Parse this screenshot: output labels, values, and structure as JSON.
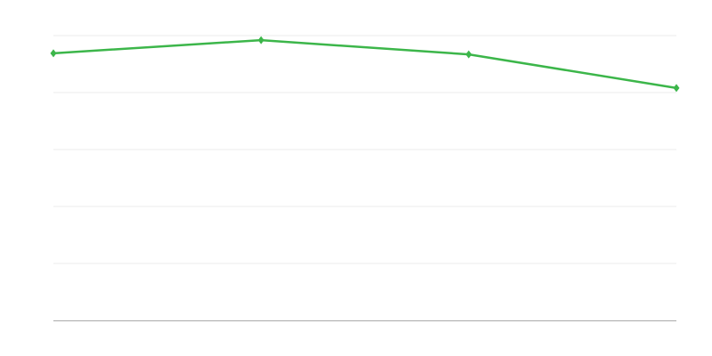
{
  "chart_data": {
    "type": "line",
    "title": "",
    "xlabel": "",
    "ylabel": "",
    "x": [
      0,
      1,
      2,
      3
    ],
    "ylim": [
      0,
      5
    ],
    "grid": true,
    "gridline_count": 5,
    "series": [
      {
        "values": [
          4.69,
          4.92,
          4.67,
          4.08
        ],
        "color": "#3cb64a",
        "marker": "diamond"
      }
    ],
    "grid_color": "#ebebeb",
    "axis_color": "#aaaaaa"
  }
}
